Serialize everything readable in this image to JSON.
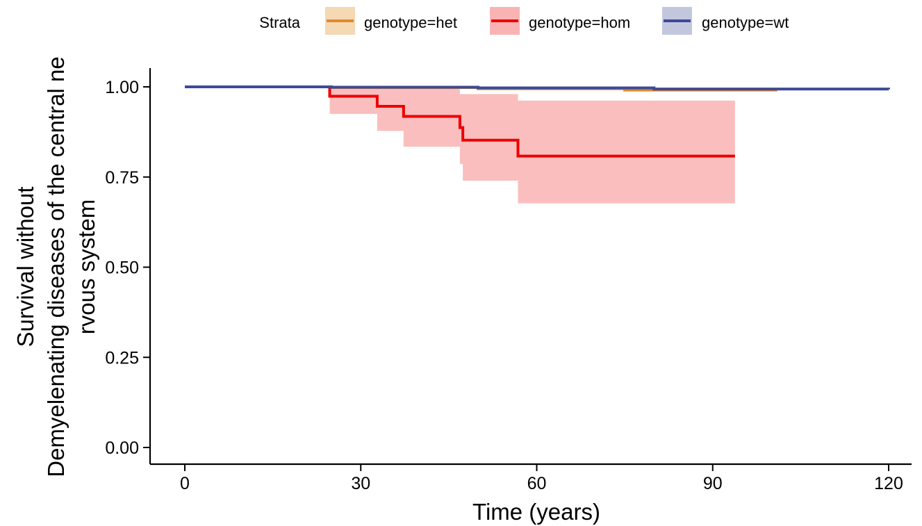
{
  "chart_data": {
    "type": "line",
    "subtype": "kaplan-meier",
    "xlabel": "Time (years)",
    "ylabel_lines": [
      "Survival without",
      "Demyelenating diseases of the central ne",
      "rvous system"
    ],
    "xlim": [
      0,
      120
    ],
    "ylim": [
      0,
      1
    ],
    "xticks": [
      0,
      30,
      60,
      90,
      120
    ],
    "yticks": [
      0,
      0.25,
      0.5,
      0.75,
      1.0
    ],
    "ytick_labels": [
      "0.00",
      "0.25",
      "0.50",
      "0.75",
      "1.00"
    ],
    "grid": false,
    "legend": {
      "title": "Strata",
      "position": "top"
    },
    "series": [
      {
        "name": "genotype=het",
        "color": "#E08A2C",
        "band_color": "#F5D8B4",
        "steps": [
          [
            0,
            1.0
          ],
          [
            25,
            0.998
          ],
          [
            50,
            0.995
          ],
          [
            75,
            0.991
          ],
          [
            101,
            0.991
          ]
        ],
        "ci": [
          [
            0,
            1.0,
            1.0
          ],
          [
            25,
            0.999,
            0.997
          ],
          [
            50,
            0.997,
            0.993
          ],
          [
            75,
            0.994,
            0.988
          ],
          [
            101,
            0.994,
            0.988
          ]
        ]
      },
      {
        "name": "genotype=hom",
        "color": "#EE0000",
        "band_color": "#F9B3B3",
        "steps": [
          [
            0,
            1.0
          ],
          [
            24.7,
            0.974
          ],
          [
            32.8,
            0.946
          ],
          [
            37.3,
            0.918
          ],
          [
            46.9,
            0.887
          ],
          [
            47.4,
            0.852
          ],
          [
            56.8,
            0.808
          ],
          [
            93.8,
            0.808
          ]
        ],
        "ci": [
          [
            0,
            1.0,
            1.0
          ],
          [
            24.7,
            1.0,
            0.925
          ],
          [
            32.8,
            1.0,
            0.878
          ],
          [
            37.3,
            1.0,
            0.834
          ],
          [
            46.9,
            0.98,
            0.786
          ],
          [
            47.4,
            0.98,
            0.74
          ],
          [
            56.8,
            0.962,
            0.677
          ],
          [
            93.8,
            0.962,
            0.677
          ]
        ]
      },
      {
        "name": "genotype=wt",
        "color": "#3C4A96",
        "band_color": "#C3C7DD",
        "steps": [
          [
            0,
            1.0
          ],
          [
            25,
            0.999
          ],
          [
            50,
            0.997
          ],
          [
            80,
            0.994
          ],
          [
            120,
            0.993
          ]
        ],
        "ci": [
          [
            0,
            1.0,
            1.0
          ],
          [
            25,
            1.0,
            0.998
          ],
          [
            50,
            0.998,
            0.996
          ],
          [
            80,
            0.996,
            0.992
          ],
          [
            120,
            0.995,
            0.991
          ]
        ]
      }
    ]
  }
}
